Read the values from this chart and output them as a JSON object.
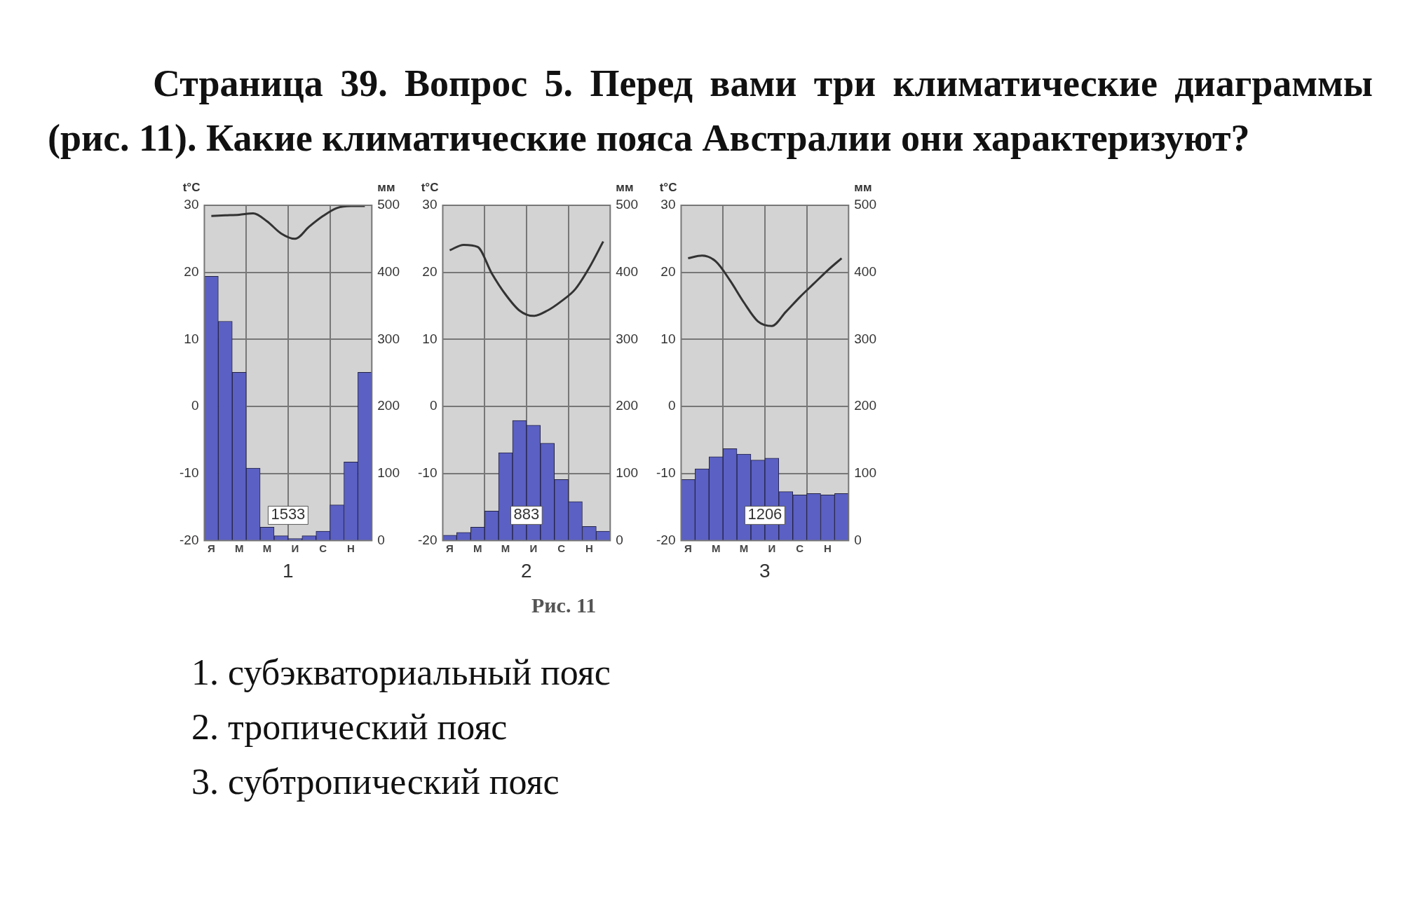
{
  "chart_data": [
    {
      "type": "other",
      "title": "Страница 39. Вопрос 5. Перед вами три климатические диаграммы (рис. 11). Какие климатические пояса Австралии они характеризуют?"
    },
    {
      "type": "bar",
      "categories": [
        "Я",
        null,
        "М",
        null,
        "М",
        null,
        "И",
        null,
        "С",
        null,
        "Н",
        null
      ],
      "xlabel": "1",
      "ylabel": "t°C",
      "y2label": "мм",
      "ylim": [
        -20,
        30
      ],
      "yticks": [
        -20,
        -10,
        0,
        10,
        20,
        30
      ],
      "y2lim": [
        0,
        500
      ],
      "y2ticks": [
        0,
        100,
        200,
        300,
        400,
        500
      ],
      "grid": true,
      "marker": "none",
      "annotations": [
        "1533"
      ],
      "series": [
        {
          "type": "bar",
          "axis": "y2",
          "color": "#5b60c4",
          "values": [
            394,
            327,
            251,
            108,
            20,
            7,
            3,
            7,
            14,
            53,
            117,
            251
          ]
        },
        {
          "type": "line",
          "color": "#333333",
          "values": [
            28.4,
            28.5,
            28.6,
            28.8,
            27.6,
            25.8,
            25,
            26.8,
            28.4,
            29.6,
            29.9,
            29.9
          ]
        }
      ]
    },
    {
      "type": "bar",
      "categories": [
        "Я",
        null,
        "М",
        null,
        "М",
        null,
        "И",
        null,
        "С",
        null,
        "Н",
        null
      ],
      "xlabel": "2",
      "ylabel": "t°C",
      "y2label": "мм",
      "ylim": [
        -20,
        30
      ],
      "yticks": [
        -20,
        -10,
        0,
        10,
        20,
        30
      ],
      "y2lim": [
        0,
        500
      ],
      "y2ticks": [
        0,
        100,
        200,
        300,
        400,
        500
      ],
      "grid": true,
      "marker": "none",
      "annotations": [
        "883"
      ],
      "series": [
        {
          "type": "bar",
          "axis": "y2",
          "color": "#5b60c4",
          "values": [
            8,
            12,
            20,
            44,
            131,
            179,
            172,
            145,
            91,
            58,
            21,
            14
          ]
        },
        {
          "type": "line",
          "color": "#333333",
          "values": [
            23.3,
            24.1,
            23.8,
            19.9,
            16.7,
            14.3,
            13.5,
            14.3,
            15.7,
            17.5,
            20.7,
            24.6
          ]
        }
      ]
    },
    {
      "type": "bar",
      "categories": [
        "Я",
        null,
        "М",
        null,
        "М",
        null,
        "И",
        null,
        "С",
        null,
        "Н",
        null
      ],
      "xlabel": "3",
      "ylabel": "t°C",
      "y2label": "мм",
      "ylim": [
        -20,
        30
      ],
      "yticks": [
        -20,
        -10,
        0,
        10,
        20,
        30
      ],
      "y2lim": [
        0,
        500
      ],
      "y2ticks": [
        0,
        100,
        200,
        300,
        400,
        500
      ],
      "grid": true,
      "marker": "none",
      "annotations": [
        "1206"
      ],
      "series": [
        {
          "type": "bar",
          "axis": "y2",
          "color": "#5b60c4",
          "values": [
            91,
            107,
            125,
            137,
            129,
            120,
            123,
            73,
            68,
            70,
            68,
            70
          ]
        },
        {
          "type": "line",
          "color": "#333333",
          "values": [
            22.1,
            22.5,
            21.6,
            18.8,
            15.5,
            12.7,
            12,
            14.1,
            16.3,
            18.3,
            20.3,
            22.1
          ]
        }
      ]
    },
    {
      "type": "other",
      "annotations": [
        "Рис. 11",
        "1. субэкваториальный пояс",
        "2. тропический пояс",
        "3. субтропический пояс"
      ]
    }
  ]
}
